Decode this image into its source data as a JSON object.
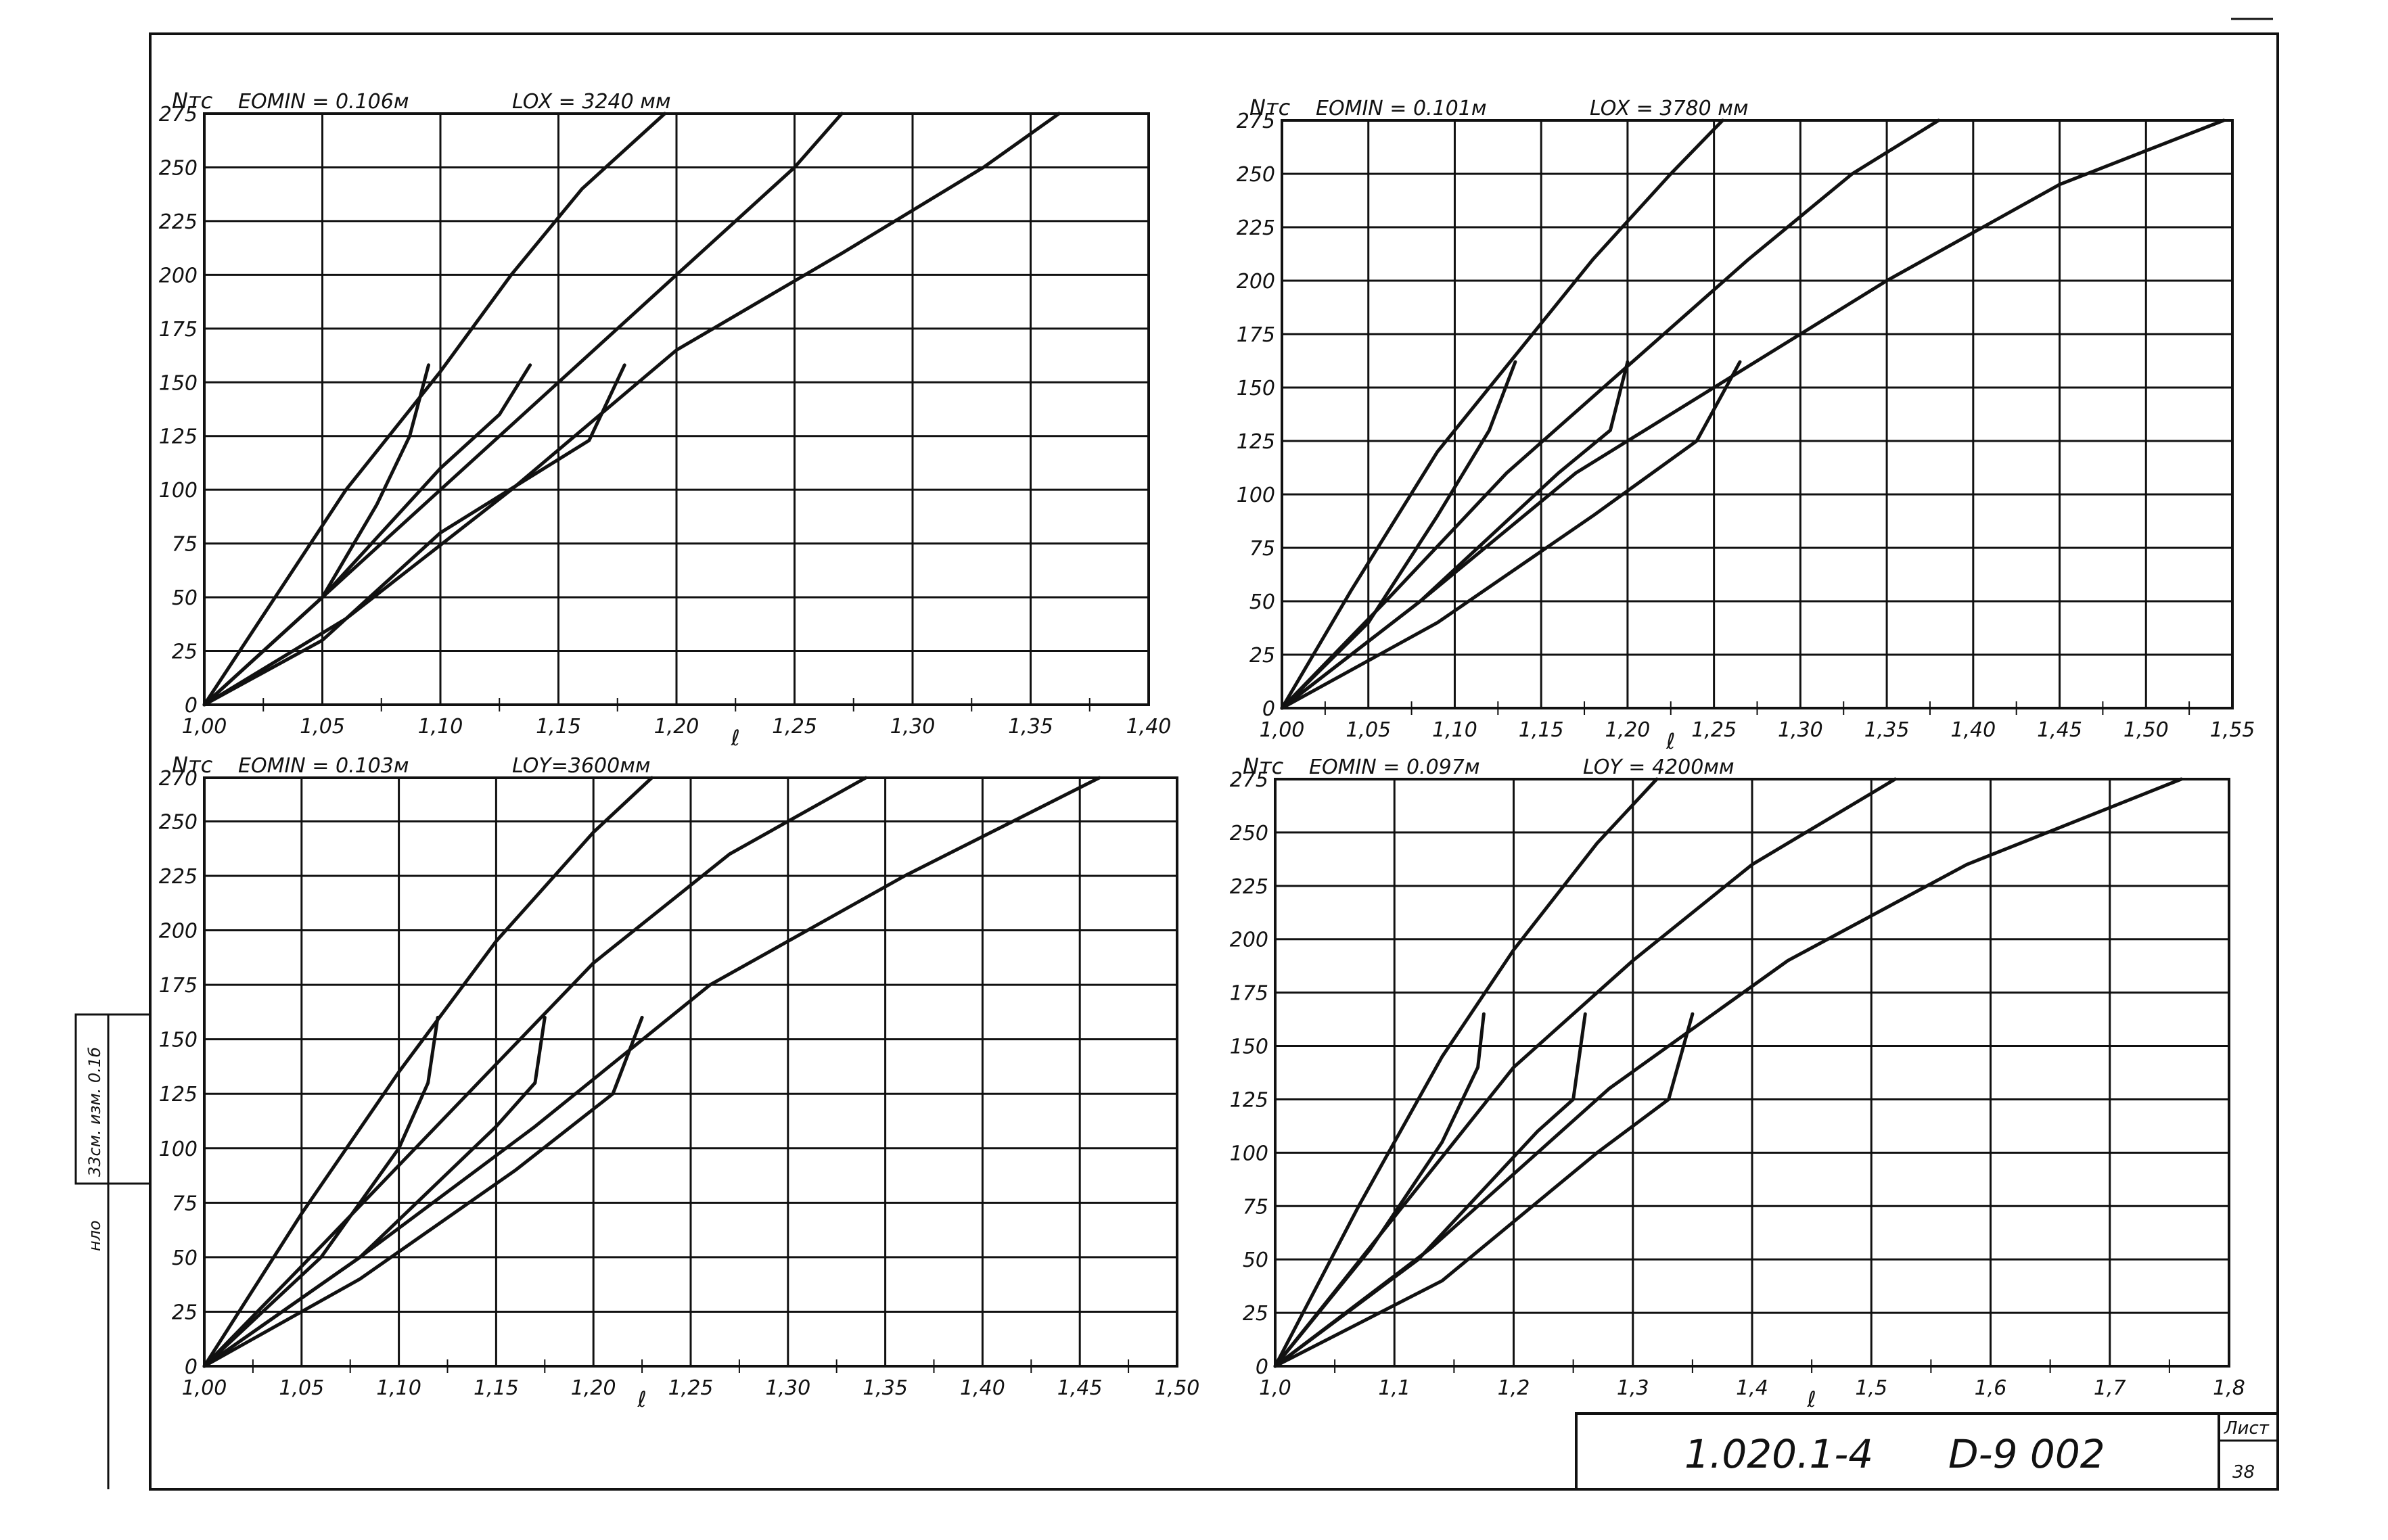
{
  "stamp": {
    "code": "1.020.1-4",
    "series": "D-9 002",
    "sheet_label": "Лист",
    "sheet_number": "38"
  },
  "side_stamp": {
    "text1": "33см. изм. 0.1б",
    "text2": "нло"
  },
  "colors": {
    "ink": "#111111",
    "paper": "#ffffff"
  },
  "chart_data": [
    {
      "type": "line",
      "ylabel": "Nтс",
      "header_left": "EOMIN = 0.106м",
      "header_right": "LOX = 3240 мм",
      "xlabel": "ℓ",
      "xlim": [
        1.0,
        1.4
      ],
      "ylim": [
        0,
        275
      ],
      "xticks": [
        1.0,
        1.05,
        1.1,
        1.15,
        1.2,
        1.25,
        1.3,
        1.35,
        1.4
      ],
      "xtick_labels": [
        "1,00",
        "1,05",
        "1,10",
        "1,15",
        "1,20",
        "1,25",
        "1,30",
        "1,35",
        "1,40"
      ],
      "yticks": [
        0,
        25,
        50,
        75,
        100,
        125,
        150,
        175,
        200,
        225,
        250,
        275
      ],
      "ytick_labels": [
        "0",
        "25",
        "50",
        "75",
        "100",
        "125",
        "150",
        "175",
        "200",
        "225",
        "250",
        "275"
      ],
      "series": [
        {
          "x": [
            1.0,
            1.03,
            1.06,
            1.1,
            1.13,
            1.16,
            1.195
          ],
          "y": [
            0,
            50,
            100,
            155,
            200,
            240,
            275
          ]
        },
        {
          "x": [
            1.0,
            1.05,
            1.1,
            1.15,
            1.2,
            1.25,
            1.27
          ],
          "y": [
            0,
            50,
            100,
            150,
            200,
            250,
            275
          ]
        },
        {
          "x": [
            1.0,
            1.06,
            1.13,
            1.2,
            1.27,
            1.33,
            1.362
          ],
          "y": [
            0,
            40,
            100,
            165,
            210,
            250,
            275
          ]
        },
        {
          "x": [
            1.0,
            1.05,
            1.073,
            1.087,
            1.095
          ],
          "y": [
            0,
            50,
            93,
            125,
            158
          ]
        },
        {
          "x": [
            1.0,
            1.05,
            1.1,
            1.125,
            1.138
          ],
          "y": [
            0,
            50,
            110,
            135,
            158
          ]
        },
        {
          "x": [
            1.0,
            1.05,
            1.1,
            1.163,
            1.178
          ],
          "y": [
            0,
            30,
            80,
            123,
            158
          ]
        }
      ]
    },
    {
      "type": "line",
      "ylabel": "Nтс",
      "header_left": "EOMIN = 0.101м",
      "header_right": "LOX = 3780 мм",
      "xlabel": "ℓ",
      "xlim": [
        1.0,
        1.55
      ],
      "ylim": [
        0,
        275
      ],
      "xticks": [
        1.0,
        1.05,
        1.1,
        1.15,
        1.2,
        1.25,
        1.3,
        1.35,
        1.4,
        1.45,
        1.5,
        1.55
      ],
      "xtick_labels": [
        "1,00",
        "1,05",
        "1,10",
        "1,15",
        "1,20",
        "1,25",
        "1,30",
        "1,35",
        "1,40",
        "1,45",
        "1,50",
        "1,55"
      ],
      "yticks": [
        0,
        25,
        50,
        75,
        100,
        125,
        150,
        175,
        200,
        225,
        250,
        275
      ],
      "ytick_labels": [
        "0",
        "25",
        "50",
        "75",
        "100",
        "125",
        "150",
        "175",
        "200",
        "225",
        "250",
        "275"
      ],
      "series": [
        {
          "x": [
            1.0,
            1.04,
            1.09,
            1.135,
            1.18,
            1.225,
            1.255
          ],
          "y": [
            0,
            55,
            120,
            165,
            210,
            250,
            275
          ]
        },
        {
          "x": [
            1.0,
            1.06,
            1.13,
            1.2,
            1.27,
            1.33,
            1.38
          ],
          "y": [
            0,
            50,
            110,
            160,
            210,
            250,
            275
          ]
        },
        {
          "x": [
            1.0,
            1.08,
            1.17,
            1.25,
            1.35,
            1.45,
            1.545
          ],
          "y": [
            0,
            50,
            110,
            150,
            200,
            245,
            275
          ]
        },
        {
          "x": [
            1.0,
            1.05,
            1.09,
            1.12,
            1.135
          ],
          "y": [
            0,
            40,
            90,
            130,
            162
          ]
        },
        {
          "x": [
            1.0,
            1.08,
            1.16,
            1.19,
            1.2
          ],
          "y": [
            0,
            50,
            110,
            130,
            162
          ]
        },
        {
          "x": [
            1.0,
            1.09,
            1.18,
            1.24,
            1.265
          ],
          "y": [
            0,
            40,
            90,
            125,
            162
          ]
        }
      ]
    },
    {
      "type": "line",
      "ylabel": "Nтс",
      "header_left": "EOMIN = 0.103м",
      "header_right": "LOY=3600мм",
      "xlabel": "ℓ",
      "xlim": [
        1.0,
        1.5
      ],
      "ylim": [
        0,
        270
      ],
      "xticks": [
        1.0,
        1.05,
        1.1,
        1.15,
        1.2,
        1.25,
        1.3,
        1.35,
        1.4,
        1.45,
        1.5
      ],
      "xtick_labels": [
        "1,00",
        "1,05",
        "1,10",
        "1,15",
        "1,20",
        "1,25",
        "1,30",
        "1,35",
        "1,40",
        "1,45",
        "1,50"
      ],
      "yticks": [
        0,
        25,
        50,
        75,
        100,
        125,
        150,
        175,
        200,
        225,
        250,
        270
      ],
      "ytick_labels": [
        "0",
        "25",
        "50",
        "75",
        "100",
        "125",
        "150",
        "175",
        "200",
        "225",
        "250",
        "270"
      ],
      "series": [
        {
          "x": [
            1.0,
            1.05,
            1.1,
            1.15,
            1.2,
            1.23
          ],
          "y": [
            0,
            70,
            135,
            195,
            245,
            270
          ]
        },
        {
          "x": [
            1.0,
            1.06,
            1.13,
            1.2,
            1.27,
            1.34
          ],
          "y": [
            0,
            55,
            120,
            185,
            235,
            270
          ]
        },
        {
          "x": [
            1.0,
            1.08,
            1.17,
            1.26,
            1.36,
            1.46
          ],
          "y": [
            0,
            50,
            110,
            175,
            225,
            270
          ]
        },
        {
          "x": [
            1.0,
            1.06,
            1.1,
            1.115,
            1.12
          ],
          "y": [
            0,
            50,
            100,
            130,
            160
          ]
        },
        {
          "x": [
            1.0,
            1.08,
            1.15,
            1.17,
            1.175
          ],
          "y": [
            0,
            50,
            110,
            130,
            160
          ]
        },
        {
          "x": [
            1.0,
            1.08,
            1.16,
            1.21,
            1.225
          ],
          "y": [
            0,
            40,
            90,
            125,
            160
          ]
        }
      ]
    },
    {
      "type": "line",
      "ylabel": "Nтс",
      "header_left": "EOMIN = 0.097м",
      "header_right": "LOY = 4200мм",
      "xlabel": "ℓ",
      "xlim": [
        1.0,
        1.8
      ],
      "ylim": [
        0,
        275
      ],
      "xticks": [
        1.0,
        1.1,
        1.2,
        1.3,
        1.4,
        1.5,
        1.6,
        1.7,
        1.8
      ],
      "xtick_labels": [
        "1,0",
        "1,1",
        "1,2",
        "1,3",
        "1,4",
        "1,5",
        "1,6",
        "1,7",
        "1,8"
      ],
      "yticks": [
        0,
        25,
        50,
        75,
        100,
        125,
        150,
        175,
        200,
        225,
        250,
        275
      ],
      "ytick_labels": [
        "0",
        "25",
        "50",
        "75",
        "100",
        "125",
        "150",
        "175",
        "200",
        "225",
        "250",
        "275"
      ],
      "series": [
        {
          "x": [
            1.0,
            1.07,
            1.14,
            1.2,
            1.27,
            1.32
          ],
          "y": [
            0,
            75,
            145,
            195,
            245,
            275
          ]
        },
        {
          "x": [
            1.0,
            1.1,
            1.2,
            1.3,
            1.4,
            1.52
          ],
          "y": [
            0,
            70,
            140,
            190,
            235,
            275
          ]
        },
        {
          "x": [
            1.0,
            1.13,
            1.28,
            1.43,
            1.58,
            1.76
          ],
          "y": [
            0,
            55,
            130,
            190,
            235,
            275
          ]
        },
        {
          "x": [
            1.0,
            1.08,
            1.14,
            1.17,
            1.175
          ],
          "y": [
            0,
            55,
            105,
            140,
            165
          ]
        },
        {
          "x": [
            1.0,
            1.12,
            1.22,
            1.25,
            1.26
          ],
          "y": [
            0,
            50,
            110,
            125,
            165
          ]
        },
        {
          "x": [
            1.0,
            1.14,
            1.27,
            1.33,
            1.35
          ],
          "y": [
            0,
            40,
            100,
            125,
            165
          ]
        }
      ]
    }
  ]
}
